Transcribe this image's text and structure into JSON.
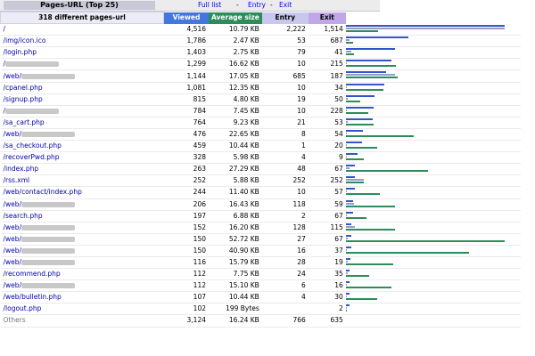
{
  "top": {
    "title": "Pages-URL (Top 25)",
    "links": [
      "Full list",
      "Entry",
      "Exit"
    ]
  },
  "headers": {
    "url": "318 different pages-url",
    "viewed": "Viewed",
    "size": "Average size",
    "entry": "Entry",
    "exit": "Exit"
  },
  "rows": [
    {
      "url": "/",
      "viewed": "4,516",
      "size": "10.79 KB",
      "entry": "2,222",
      "exit": "1,514",
      "v": 4516,
      "s": 10.79,
      "e": 2222,
      "x": 1514
    },
    {
      "url": "/img/icon.ico",
      "viewed": "1,786",
      "size": "2.47 KB",
      "entry": "53",
      "exit": "687",
      "v": 1786,
      "s": 2.47,
      "e": 53,
      "x": 687
    },
    {
      "url": "/login.php",
      "viewed": "1,403",
      "size": "2.75 KB",
      "entry": "79",
      "exit": "41",
      "v": 1403,
      "s": 2.75,
      "e": 79,
      "x": 41
    },
    {
      "url": "/",
      "viewed": "1,299",
      "size": "16.62 KB",
      "entry": "10",
      "exit": "215",
      "v": 1299,
      "s": 16.62,
      "e": 10,
      "x": 215,
      "blur": true
    },
    {
      "url": "/web/",
      "viewed": "1,144",
      "size": "17.05 KB",
      "entry": "685",
      "exit": "187",
      "v": 1144,
      "s": 17.05,
      "e": 685,
      "x": 187,
      "blur": true
    },
    {
      "url": "/cpanel.php",
      "viewed": "1,081",
      "size": "12.35 KB",
      "entry": "10",
      "exit": "34",
      "v": 1081,
      "s": 12.35,
      "e": 10,
      "x": 34
    },
    {
      "url": "/signup.php",
      "viewed": "815",
      "size": "4.80 KB",
      "entry": "19",
      "exit": "50",
      "v": 815,
      "s": 4.8,
      "e": 19,
      "x": 50
    },
    {
      "url": "/",
      "viewed": "784",
      "size": "7.45 KB",
      "entry": "10",
      "exit": "228",
      "v": 784,
      "s": 7.45,
      "e": 10,
      "x": 228,
      "blur": true
    },
    {
      "url": "/sa_cart.php",
      "viewed": "764",
      "size": "9.23 KB",
      "entry": "21",
      "exit": "53",
      "v": 764,
      "s": 9.23,
      "e": 21,
      "x": 53
    },
    {
      "url": "/web/",
      "viewed": "476",
      "size": "22.65 KB",
      "entry": "8",
      "exit": "54",
      "v": 476,
      "s": 22.65,
      "e": 8,
      "x": 54,
      "blur": true
    },
    {
      "url": "/sa_checkout.php",
      "viewed": "459",
      "size": "10.44 KB",
      "entry": "1",
      "exit": "20",
      "v": 459,
      "s": 10.44,
      "e": 1,
      "x": 20
    },
    {
      "url": "/recoverPwd.php",
      "viewed": "328",
      "size": "5.98 KB",
      "entry": "4",
      "exit": "9",
      "v": 328,
      "s": 5.98,
      "e": 4,
      "x": 9
    },
    {
      "url": "/index.php",
      "viewed": "263",
      "size": "27.29 KB",
      "entry": "48",
      "exit": "67",
      "v": 263,
      "s": 27.29,
      "e": 48,
      "x": 67
    },
    {
      "url": "/rss.xml",
      "viewed": "252",
      "size": "5.88 KB",
      "entry": "252",
      "exit": "252",
      "v": 252,
      "s": 5.88,
      "e": 252,
      "x": 252
    },
    {
      "url": "/web/contact/index.php",
      "viewed": "244",
      "size": "11.40 KB",
      "entry": "10",
      "exit": "57",
      "v": 244,
      "s": 11.4,
      "e": 10,
      "x": 57
    },
    {
      "url": "/web/",
      "viewed": "206",
      "size": "16.43 KB",
      "entry": "118",
      "exit": "59",
      "v": 206,
      "s": 16.43,
      "e": 118,
      "x": 59,
      "blur": true
    },
    {
      "url": "/search.php",
      "viewed": "197",
      "size": "6.88 KB",
      "entry": "2",
      "exit": "67",
      "v": 197,
      "s": 6.88,
      "e": 2,
      "x": 67
    },
    {
      "url": "/web/",
      "viewed": "152",
      "size": "16.20 KB",
      "entry": "128",
      "exit": "115",
      "v": 152,
      "s": 16.2,
      "e": 128,
      "x": 115,
      "blur": true
    },
    {
      "url": "/web/",
      "viewed": "150",
      "size": "52.72 KB",
      "entry": "27",
      "exit": "67",
      "v": 150,
      "s": 52.72,
      "e": 27,
      "x": 67,
      "blur": true
    },
    {
      "url": "/web/",
      "viewed": "150",
      "size": "40.90 KB",
      "entry": "16",
      "exit": "37",
      "v": 150,
      "s": 40.9,
      "e": 16,
      "x": 37,
      "blur": true
    },
    {
      "url": "/web/",
      "viewed": "116",
      "size": "15.79 KB",
      "entry": "28",
      "exit": "19",
      "v": 116,
      "s": 15.79,
      "e": 28,
      "x": 19,
      "blur": true
    },
    {
      "url": "/recommend.php",
      "viewed": "112",
      "size": "7.75 KB",
      "entry": "24",
      "exit": "35",
      "v": 112,
      "s": 7.75,
      "e": 24,
      "x": 35
    },
    {
      "url": "/web/",
      "viewed": "112",
      "size": "15.10 KB",
      "entry": "6",
      "exit": "16",
      "v": 112,
      "s": 15.1,
      "e": 6,
      "x": 16,
      "blur": true
    },
    {
      "url": "/web/bulletin.php",
      "viewed": "107",
      "size": "10.44 KB",
      "entry": "4",
      "exit": "30",
      "v": 107,
      "s": 10.44,
      "e": 4,
      "x": 30
    },
    {
      "url": "/logout.php",
      "viewed": "102",
      "size": "199 Bytes",
      "entry": "",
      "exit": "2",
      "v": 102,
      "s": 0.19,
      "e": 0,
      "x": 2
    },
    {
      "url": "Others",
      "viewed": "3,124",
      "size": "16.24 KB",
      "entry": "766",
      "exit": "635",
      "other": true
    }
  ],
  "colors": {
    "viewed": "#3355cc",
    "entry": "#9999cc",
    "size": "#2c8c5a"
  }
}
